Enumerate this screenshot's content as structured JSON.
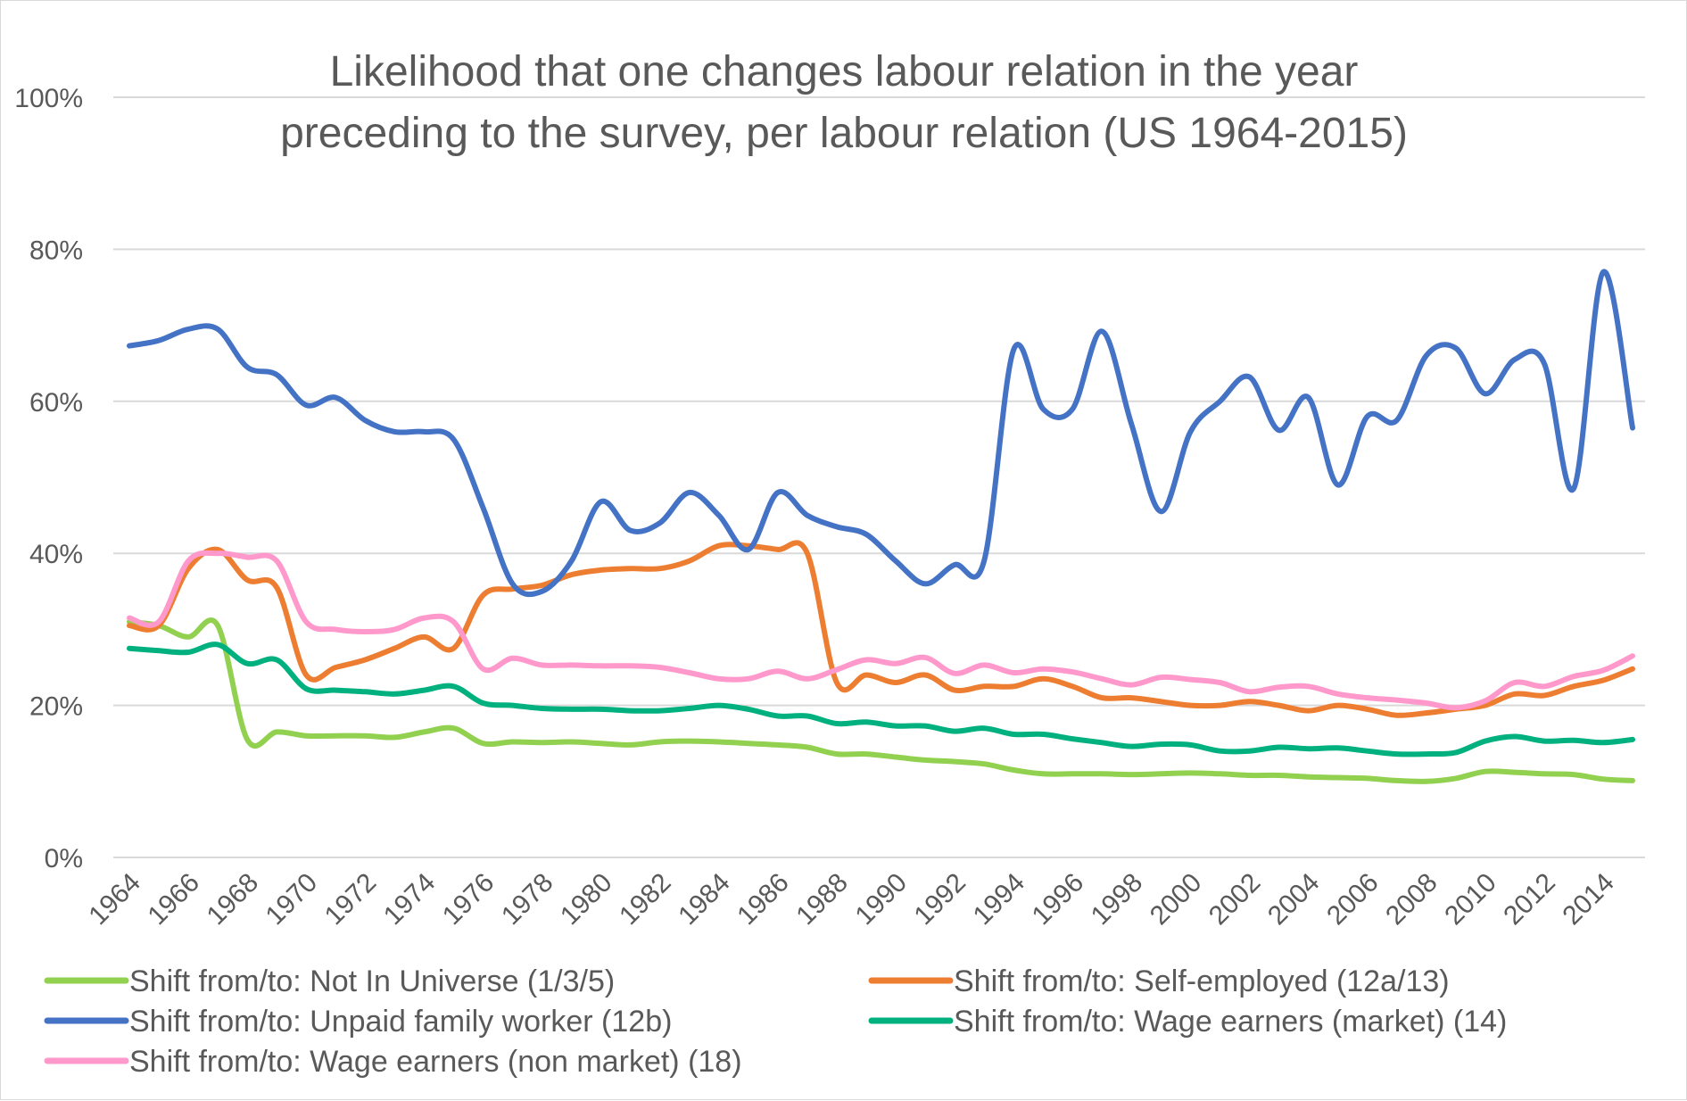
{
  "chart_data": {
    "type": "line",
    "title": "Likelihood that one changes labour relation in the year preceding to the survey, per labour relation (US 1964-2015)",
    "title_lines": [
      "Likelihood that one changes labour relation in the year",
      "preceding to the survey, per labour relation (US 1964-2015)"
    ],
    "xlabel": "",
    "ylabel": "",
    "ylim": [
      0,
      100
    ],
    "y_ticks": [
      0,
      20,
      40,
      60,
      80,
      100
    ],
    "y_tick_labels": [
      "0%",
      "20%",
      "40%",
      "60%",
      "80%",
      "100%"
    ],
    "grid": true,
    "legend_position": "bottom",
    "x": [
      1964,
      1965,
      1966,
      1967,
      1968,
      1969,
      1970,
      1971,
      1972,
      1973,
      1974,
      1975,
      1976,
      1977,
      1978,
      1979,
      1980,
      1981,
      1982,
      1983,
      1984,
      1985,
      1986,
      1987,
      1988,
      1989,
      1990,
      1991,
      1992,
      1993,
      1994,
      1995,
      1996,
      1997,
      1998,
      1999,
      2000,
      2001,
      2002,
      2003,
      2004,
      2005,
      2006,
      2007,
      2008,
      2009,
      2010,
      2011,
      2012,
      2013,
      2014,
      2015
    ],
    "x_tick_labels": [
      "1964",
      "1966",
      "1968",
      "1970",
      "1972",
      "1974",
      "1976",
      "1978",
      "1980",
      "1982",
      "1984",
      "1986",
      "1988",
      "1990",
      "1992",
      "1994",
      "1996",
      "1998",
      "2000",
      "2002",
      "2004",
      "2006",
      "2008",
      "2010",
      "2012",
      "2014"
    ],
    "series": [
      {
        "name": "Shift from/to: Not In Universe (1/3/5)",
        "color": "#92d050",
        "values": [
          31,
          30.5,
          29,
          30.5,
          15.5,
          16.5,
          16,
          16,
          16,
          15.8,
          16.5,
          17,
          15,
          15.2,
          15.1,
          15.2,
          15,
          14.8,
          15.2,
          15.3,
          15.2,
          15,
          14.8,
          14.5,
          13.6,
          13.6,
          13.2,
          12.8,
          12.6,
          12.3,
          11.5,
          11,
          11,
          11,
          10.9,
          11,
          11.1,
          11,
          10.8,
          10.8,
          10.6,
          10.5,
          10.4,
          10.1,
          10,
          10.4,
          11.3,
          11.2,
          11,
          10.9,
          10.3,
          10.1
        ]
      },
      {
        "name": "Shift from/to: Self-employed (12a/13)",
        "color": "#ed7d31",
        "values": [
          30.5,
          30.5,
          38,
          40.5,
          36.5,
          35.5,
          24,
          25,
          26,
          27.5,
          29,
          27.5,
          34.5,
          35.3,
          35.8,
          37.2,
          37.8,
          38,
          38,
          39,
          41,
          41,
          40.5,
          40,
          23,
          24,
          23,
          24,
          22,
          22.5,
          22.5,
          23.5,
          22.5,
          21,
          21,
          20.5,
          20,
          20,
          20.5,
          20,
          19.3,
          20,
          19.5,
          18.7,
          19,
          19.5,
          20,
          21.5,
          21.3,
          22.5,
          23.3,
          24.8
        ]
      },
      {
        "name": "Shift from/to: Unpaid family worker (12b)",
        "color": "#4472c4",
        "values": [
          67.3,
          68,
          69.5,
          69.5,
          64.5,
          63.5,
          59.5,
          60.5,
          57.5,
          56,
          56,
          55,
          46,
          36,
          35,
          39,
          46.8,
          43,
          44,
          48,
          45,
          40.5,
          48,
          45,
          43.5,
          42.5,
          39,
          36,
          38.5,
          39,
          66.8,
          59,
          59,
          69.2,
          57,
          45.5,
          56,
          60,
          63.2,
          56.2,
          60.5,
          49,
          58,
          57.5,
          66,
          67,
          61,
          65.5,
          65,
          48.5,
          77,
          56.5
        ]
      },
      {
        "name": "Shift from/to: Wage earners (market) (14)",
        "color": "#00b07f",
        "values": [
          27.5,
          27.2,
          27,
          28,
          25.5,
          26,
          22.2,
          22,
          21.8,
          21.5,
          22,
          22.5,
          20.3,
          20,
          19.6,
          19.5,
          19.5,
          19.3,
          19.3,
          19.6,
          20,
          19.5,
          18.6,
          18.6,
          17.6,
          17.8,
          17.3,
          17.3,
          16.6,
          17,
          16.2,
          16.2,
          15.6,
          15.1,
          14.6,
          14.9,
          14.8,
          14,
          14,
          14.5,
          14.3,
          14.4,
          14,
          13.6,
          13.6,
          13.8,
          15.3,
          15.9,
          15.3,
          15.4,
          15.1,
          15.5
        ]
      },
      {
        "name": "Shift from/to: Wage earners (non market) (18)",
        "color": "#ff99cc",
        "values": [
          31.5,
          31,
          39,
          40,
          39.5,
          39,
          31,
          30,
          29.7,
          30,
          31.5,
          31,
          24.8,
          26.2,
          25.3,
          25.3,
          25.2,
          25.2,
          25,
          24.3,
          23.5,
          23.5,
          24.5,
          23.5,
          24.7,
          26,
          25.5,
          26.3,
          24.2,
          25.3,
          24.3,
          24.8,
          24.4,
          23.5,
          22.7,
          23.7,
          23.4,
          23,
          21.8,
          22.4,
          22.5,
          21.5,
          21,
          20.7,
          20.3,
          19.7,
          20.6,
          23,
          22.5,
          23.8,
          24.6,
          26.5
        ]
      }
    ]
  }
}
